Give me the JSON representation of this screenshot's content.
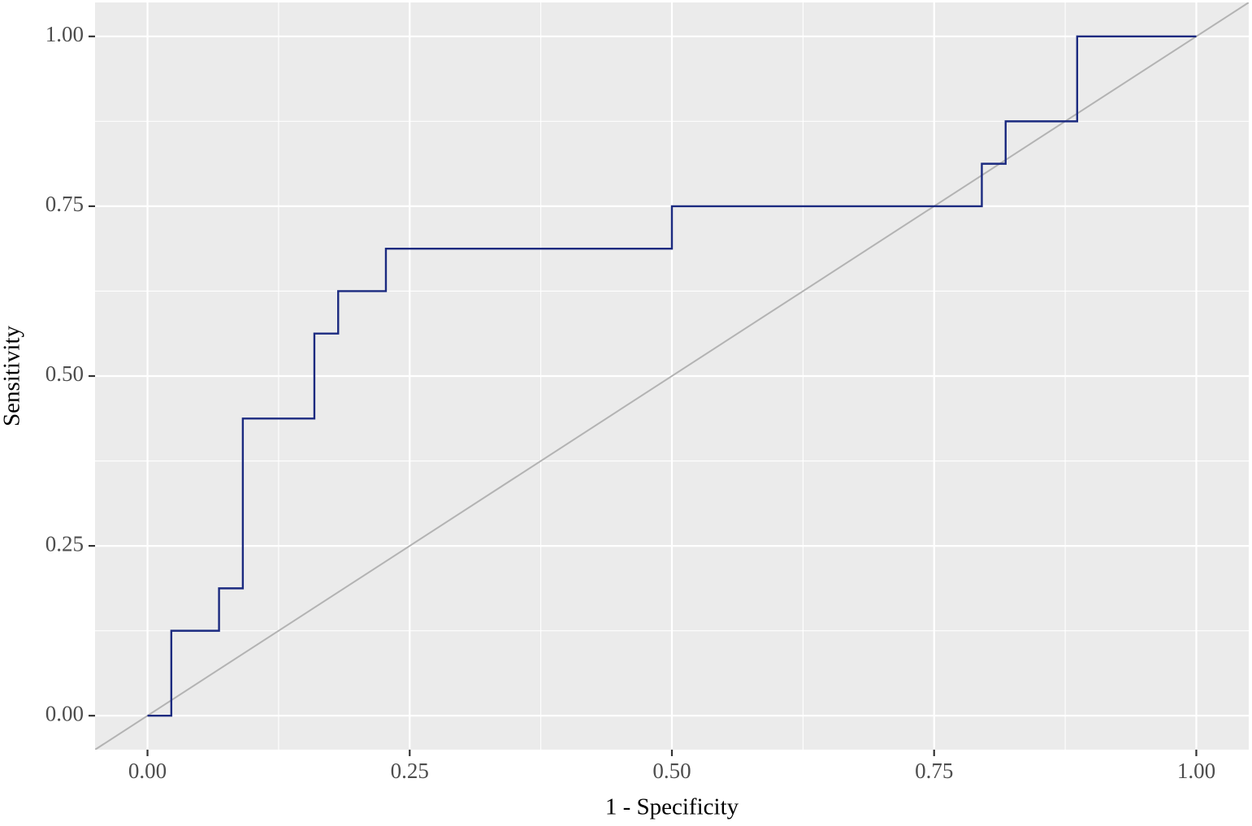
{
  "chart_data": {
    "type": "line",
    "xlabel": "1 - Specificity",
    "ylabel": "Sensitivity",
    "x": [
      0,
      0.0227,
      0.0227,
      0.0682,
      0.0682,
      0.0909,
      0.0909,
      0.1591,
      0.1591,
      0.1818,
      0.1818,
      0.2273,
      0.2273,
      0.5,
      0.5,
      0.7955,
      0.7955,
      0.8182,
      0.8182,
      0.8864,
      0.8864,
      1
    ],
    "values": [
      0,
      0,
      0.125,
      0.125,
      0.1875,
      0.1875,
      0.4375,
      0.4375,
      0.5625,
      0.5625,
      0.625,
      0.625,
      0.6875,
      0.6875,
      0.75,
      0.75,
      0.8125,
      0.8125,
      0.875,
      0.875,
      1,
      1
    ],
    "color": "#1b2a80",
    "reference_line": {
      "intercept": 0,
      "slope": 1,
      "color": "#b3b3b3"
    },
    "xlim": [
      -0.05,
      1.05
    ],
    "ylim": [
      -0.05,
      1.05
    ],
    "xticks": [
      {
        "value": 0,
        "label": "0.00"
      },
      {
        "value": 0.25,
        "label": "0.25"
      },
      {
        "value": 0.5,
        "label": "0.50"
      },
      {
        "value": 0.75,
        "label": "0.75"
      },
      {
        "value": 1,
        "label": "1.00"
      }
    ],
    "yticks": [
      {
        "value": 0,
        "label": "0.00"
      },
      {
        "value": 0.25,
        "label": "0.25"
      },
      {
        "value": 0.5,
        "label": "0.50"
      },
      {
        "value": 0.75,
        "label": "0.75"
      },
      {
        "value": 1,
        "label": "1.00"
      }
    ],
    "xminor": [
      0.125,
      0.375,
      0.625,
      0.875
    ],
    "yminor": [
      0.125,
      0.375,
      0.625,
      0.875
    ],
    "grid": true
  }
}
